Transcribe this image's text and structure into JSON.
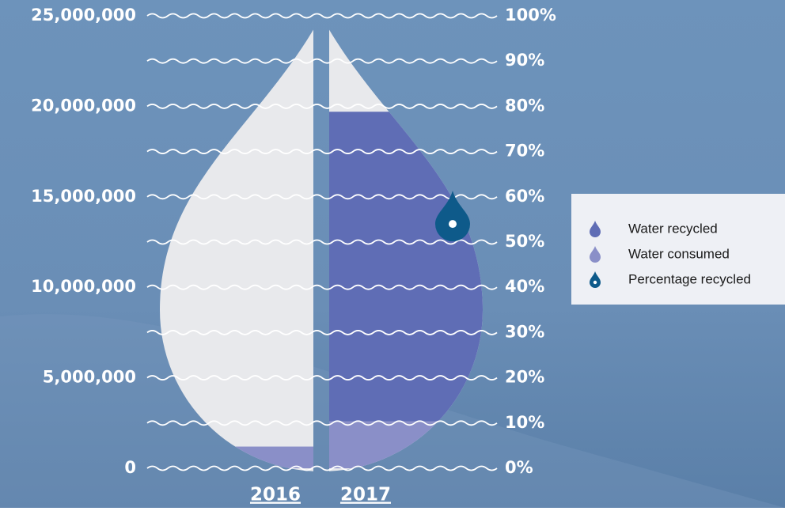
{
  "chart_data": {
    "type": "drop",
    "categories": [
      "2016",
      "2017"
    ],
    "series": [
      {
        "name": "Water recycled",
        "color": "#5f6db5",
        "values": [
          0,
          17100000
        ]
      },
      {
        "name": "Water consumed",
        "color": "#8a8fc8",
        "values": [
          1200000,
          2600000
        ]
      },
      {
        "name": "Percentage recycled",
        "color": "#0e5a8a",
        "values": [
          null,
          54
        ],
        "axis": "y2"
      }
    ],
    "ylim": [
      0,
      25000000
    ],
    "yticks": [
      0,
      {
        "value": 5000000,
        "label": "5,000,000"
      },
      {
        "value": 10000000,
        "label": "10,000,000"
      },
      {
        "value": 15000000,
        "label": "15,000,000"
      },
      {
        "value": 20000000,
        "label": "20,000,000"
      },
      {
        "value": 25000000,
        "label": "25,000,000"
      }
    ],
    "y2lim": [
      0,
      100
    ],
    "y2ticks": [
      {
        "value": 0,
        "label": "0%"
      },
      {
        "value": 10,
        "label": "10%"
      },
      {
        "value": 20,
        "label": "20%"
      },
      {
        "value": 30,
        "label": "30%"
      },
      {
        "value": 40,
        "label": "40%"
      },
      {
        "value": 50,
        "label": "50%"
      },
      {
        "value": 60,
        "label": "60%"
      },
      {
        "value": 70,
        "label": "70%"
      },
      {
        "value": 80,
        "label": "80%"
      },
      {
        "value": 90,
        "label": "90%"
      },
      {
        "value": 100,
        "label": "100%"
      }
    ],
    "grid": true
  }
}
